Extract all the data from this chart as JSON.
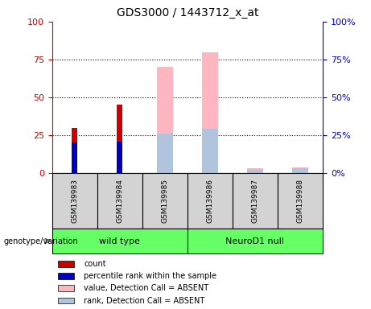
{
  "title": "GDS3000 / 1443712_x_at",
  "samples": [
    "GSM139983",
    "GSM139984",
    "GSM139985",
    "GSM139986",
    "GSM139987",
    "GSM139988"
  ],
  "count_values": [
    30,
    45,
    null,
    null,
    null,
    null
  ],
  "rank_values": [
    20,
    21,
    null,
    null,
    null,
    null
  ],
  "absent_value_values": [
    null,
    null,
    70,
    80,
    3,
    4
  ],
  "absent_rank_values": [
    null,
    null,
    26,
    29,
    2,
    3
  ],
  "ylim": [
    0,
    100
  ],
  "yticks": [
    0,
    25,
    50,
    75,
    100
  ],
  "left_axis_color": "#CC0000",
  "right_axis_color": "#0000CC",
  "count_color": "#CC0000",
  "rank_color": "#0000BB",
  "absent_value_color": "#FFB6C1",
  "absent_rank_color": "#B0C4DE",
  "group_box_color": "#D3D3D3",
  "group_label_1": "wild type",
  "group_label_2": "NeuroD1 null",
  "legend_items": [
    {
      "label": "count",
      "color": "#CC0000"
    },
    {
      "label": "percentile rank within the sample",
      "color": "#0000BB"
    },
    {
      "label": "value, Detection Call = ABSENT",
      "color": "#FFB6C1"
    },
    {
      "label": "rank, Detection Call = ABSENT",
      "color": "#B0C4DE"
    }
  ],
  "genotype_label": "genotype/variation",
  "group_green": "#66FF66",
  "narrow_bar_width": 0.12,
  "wide_bar_width": 0.35
}
